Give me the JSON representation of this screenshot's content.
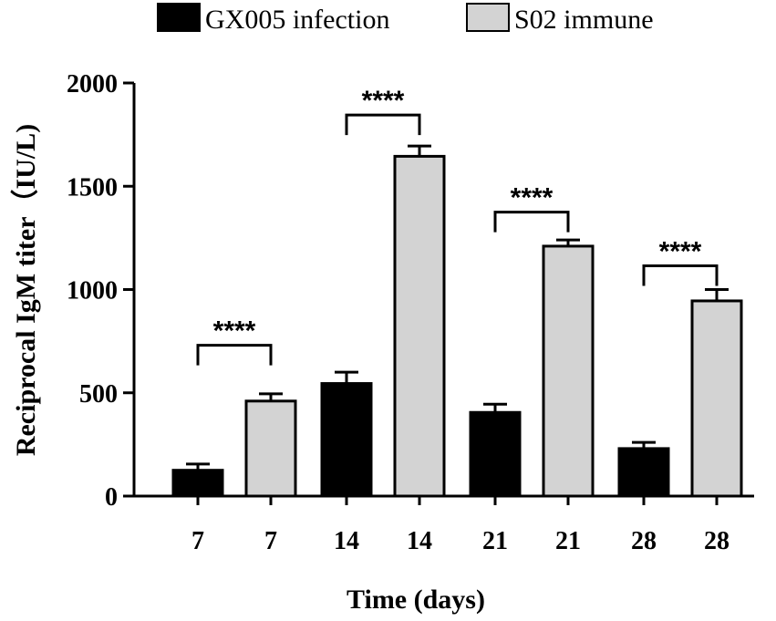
{
  "chart_data": {
    "type": "bar",
    "title": "",
    "ylabel": "Reciprocal IgM titer（IU/L)",
    "xlabel": "Time (days)",
    "ylim": [
      0,
      2000
    ],
    "yticks": [
      "0",
      "500",
      "1000",
      "1500",
      "2000"
    ],
    "categories": [
      "7",
      "7",
      "14",
      "14",
      "21",
      "21",
      "28",
      "28"
    ],
    "legend": [
      {
        "label": "GX005 infection",
        "color": "#000000"
      },
      {
        "label": "S02 immune",
        "color": "#d3d3d3"
      }
    ],
    "legend_position": "top",
    "bars": [
      {
        "category": "7",
        "series": "GX005 infection",
        "value": 125,
        "error": 30
      },
      {
        "category": "7",
        "series": "S02 immune",
        "value": 460,
        "error": 35
      },
      {
        "category": "14",
        "series": "GX005 infection",
        "value": 545,
        "error": 55
      },
      {
        "category": "14",
        "series": "S02 immune",
        "value": 1645,
        "error": 50
      },
      {
        "category": "21",
        "series": "GX005 infection",
        "value": 405,
        "error": 40
      },
      {
        "category": "21",
        "series": "S02 immune",
        "value": 1210,
        "error": 30
      },
      {
        "category": "28",
        "series": "GX005 infection",
        "value": 230,
        "error": 30
      },
      {
        "category": "28",
        "series": "S02 immune",
        "value": 945,
        "error": 55
      }
    ],
    "significance": [
      {
        "from_bar": 0,
        "to_bar": 1,
        "level": 730,
        "label": "****"
      },
      {
        "from_bar": 2,
        "to_bar": 3,
        "level": 1845,
        "label": "****"
      },
      {
        "from_bar": 4,
        "to_bar": 5,
        "level": 1375,
        "label": "****"
      },
      {
        "from_bar": 6,
        "to_bar": 7,
        "level": 1115,
        "label": "****"
      }
    ],
    "grid": false
  }
}
